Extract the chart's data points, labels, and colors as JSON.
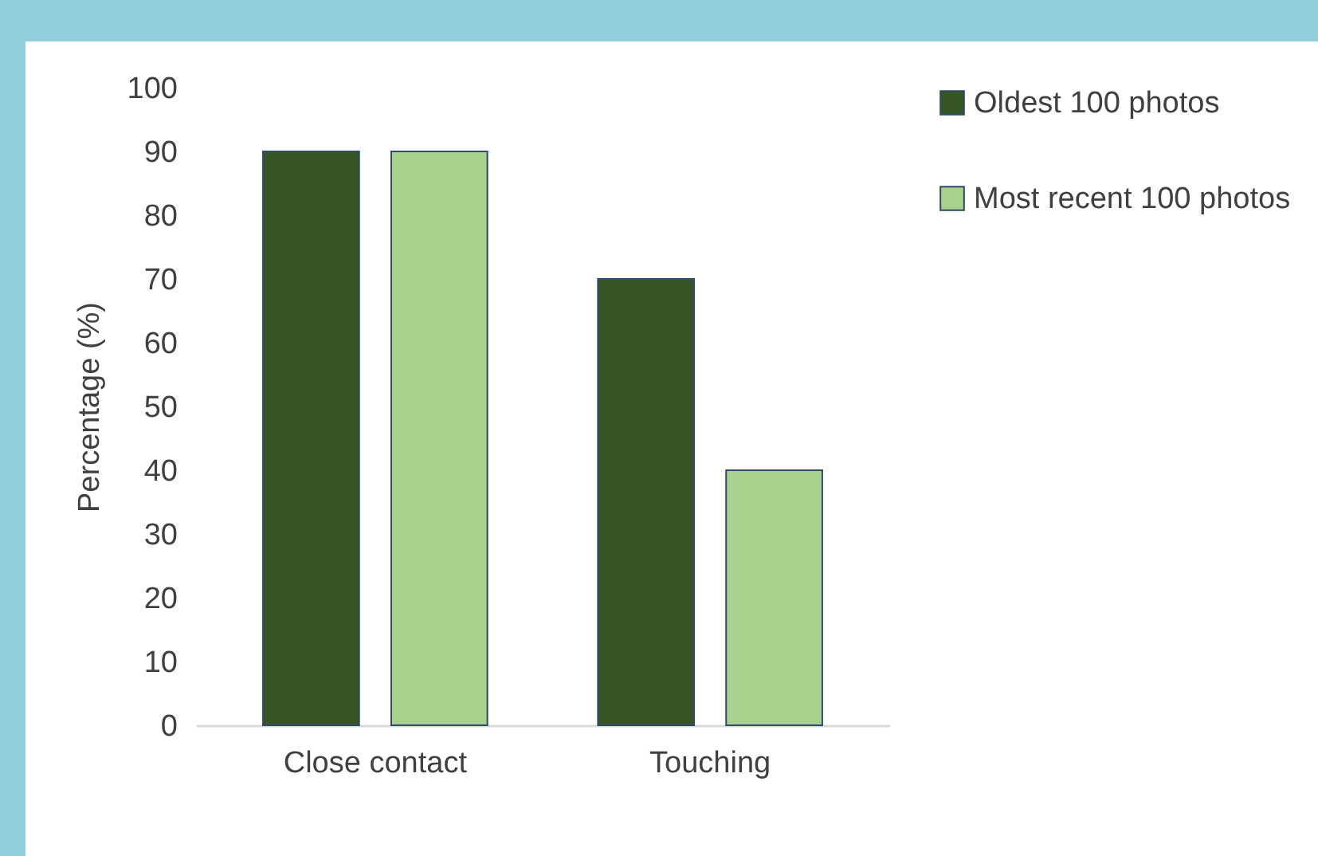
{
  "chart_data": {
    "type": "bar",
    "ylabel": "Percentage (%)",
    "categories": [
      "Close contact",
      "Touching"
    ],
    "series": [
      {
        "name": "Oldest 100 photos",
        "color": "#375623",
        "values": [
          90,
          70
        ]
      },
      {
        "name": "Most recent 100 photos",
        "color": "#a9d18e",
        "values": [
          90,
          40
        ]
      }
    ],
    "ylim": [
      0,
      100
    ],
    "yticks": [
      0,
      10,
      20,
      30,
      40,
      50,
      60,
      70,
      80,
      90,
      100
    ],
    "grid": false,
    "legend": "right"
  }
}
